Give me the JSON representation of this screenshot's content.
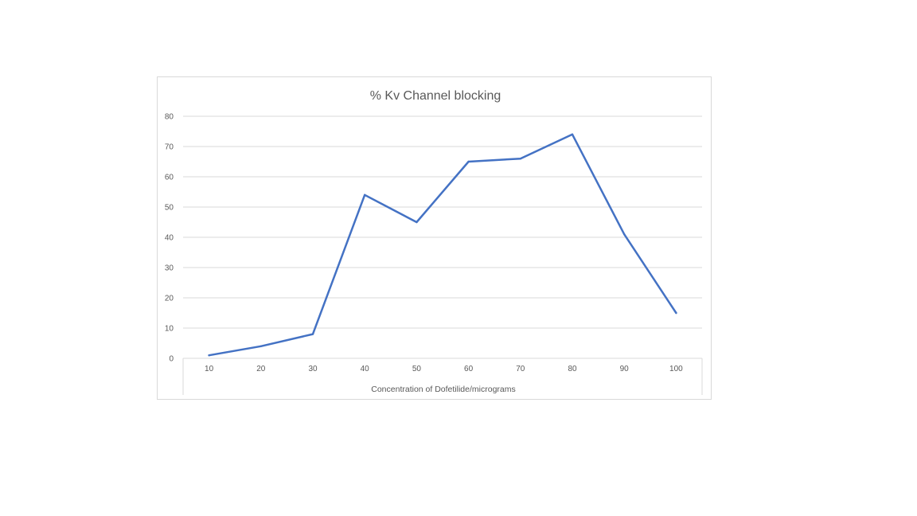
{
  "chart_data": {
    "type": "line",
    "title": "% Kv Channel blocking",
    "xlabel": "Concentration of Dofetilide/micrograms",
    "ylabel": "",
    "categories": [
      "10",
      "20",
      "30",
      "40",
      "50",
      "60",
      "70",
      "80",
      "90",
      "100"
    ],
    "series": [
      {
        "values": [
          1,
          4,
          8,
          54,
          45,
          65,
          66,
          74,
          41,
          15
        ],
        "color": "#4472c4"
      }
    ],
    "ylim": [
      0,
      80
    ],
    "yticks": [
      0,
      10,
      20,
      30,
      40,
      50,
      60,
      70,
      80
    ],
    "grid": true,
    "legend": "none"
  }
}
